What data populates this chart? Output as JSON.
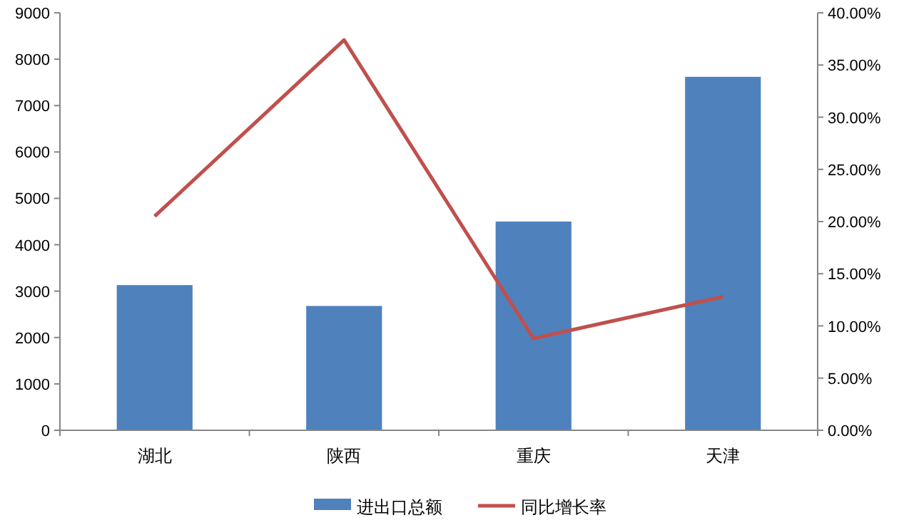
{
  "chart_data": {
    "type": "bar",
    "categories": [
      "湖北",
      "陕西",
      "重庆",
      "天津"
    ],
    "series": [
      {
        "name": "进出口总额",
        "color": "#4f81bd",
        "values": [
          3130,
          2680,
          4500,
          7620
        ]
      },
      {
        "name": "同比增长率",
        "type": "line",
        "axis": "y2",
        "color": "#c0504d",
        "values": [
          20.5,
          37.4,
          8.8,
          12.8
        ]
      }
    ],
    "ylim": [
      0,
      9000
    ],
    "yticks": [
      0,
      1000,
      2000,
      3000,
      4000,
      5000,
      6000,
      7000,
      8000,
      9000
    ],
    "y2lim": [
      0,
      40
    ],
    "y2ticks": [
      {
        "value": 0,
        "label": "0.00%"
      },
      {
        "value": 5,
        "label": "5.00%"
      },
      {
        "value": 10,
        "label": "10.00%"
      },
      {
        "value": 15,
        "label": "15.00%"
      },
      {
        "value": 20,
        "label": "20.00%"
      },
      {
        "value": 25,
        "label": "25.00%"
      },
      {
        "value": 30,
        "label": "30.00%"
      },
      {
        "value": 35,
        "label": "35.00%"
      },
      {
        "value": 40,
        "label": "40.00%"
      }
    ],
    "legend": "bottom",
    "grid": false,
    "marker": "none"
  }
}
